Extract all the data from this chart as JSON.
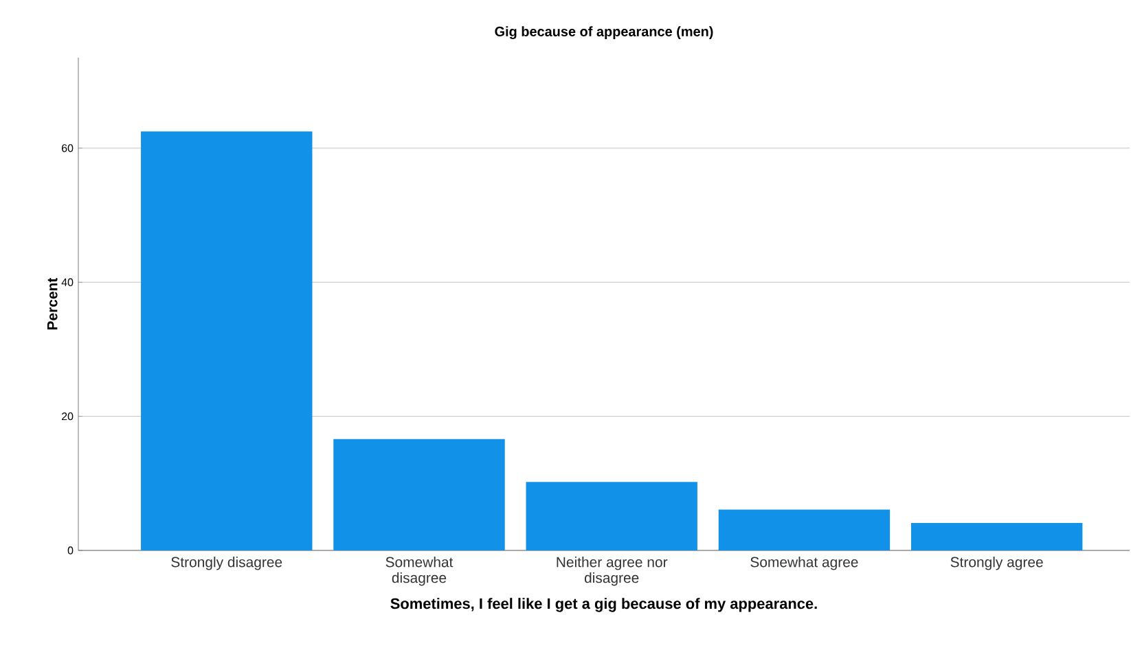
{
  "chart_data": {
    "type": "bar",
    "title": "Gig because of appearance (men)",
    "xlabel": "Sometimes, I feel like I get a gig because of my appearance.",
    "ylabel": "Percent",
    "categories": [
      "Strongly disagree",
      "Somewhat disagree",
      "Neither agree nor disagree",
      "Somewhat agree",
      "Strongly agree"
    ],
    "values": [
      62.5,
      16.6,
      10.2,
      6.1,
      4.1
    ],
    "color": "#1192e8",
    "ylim": [
      0,
      73.5
    ],
    "yticks": [
      0,
      20,
      40,
      60
    ],
    "grid": "y"
  }
}
